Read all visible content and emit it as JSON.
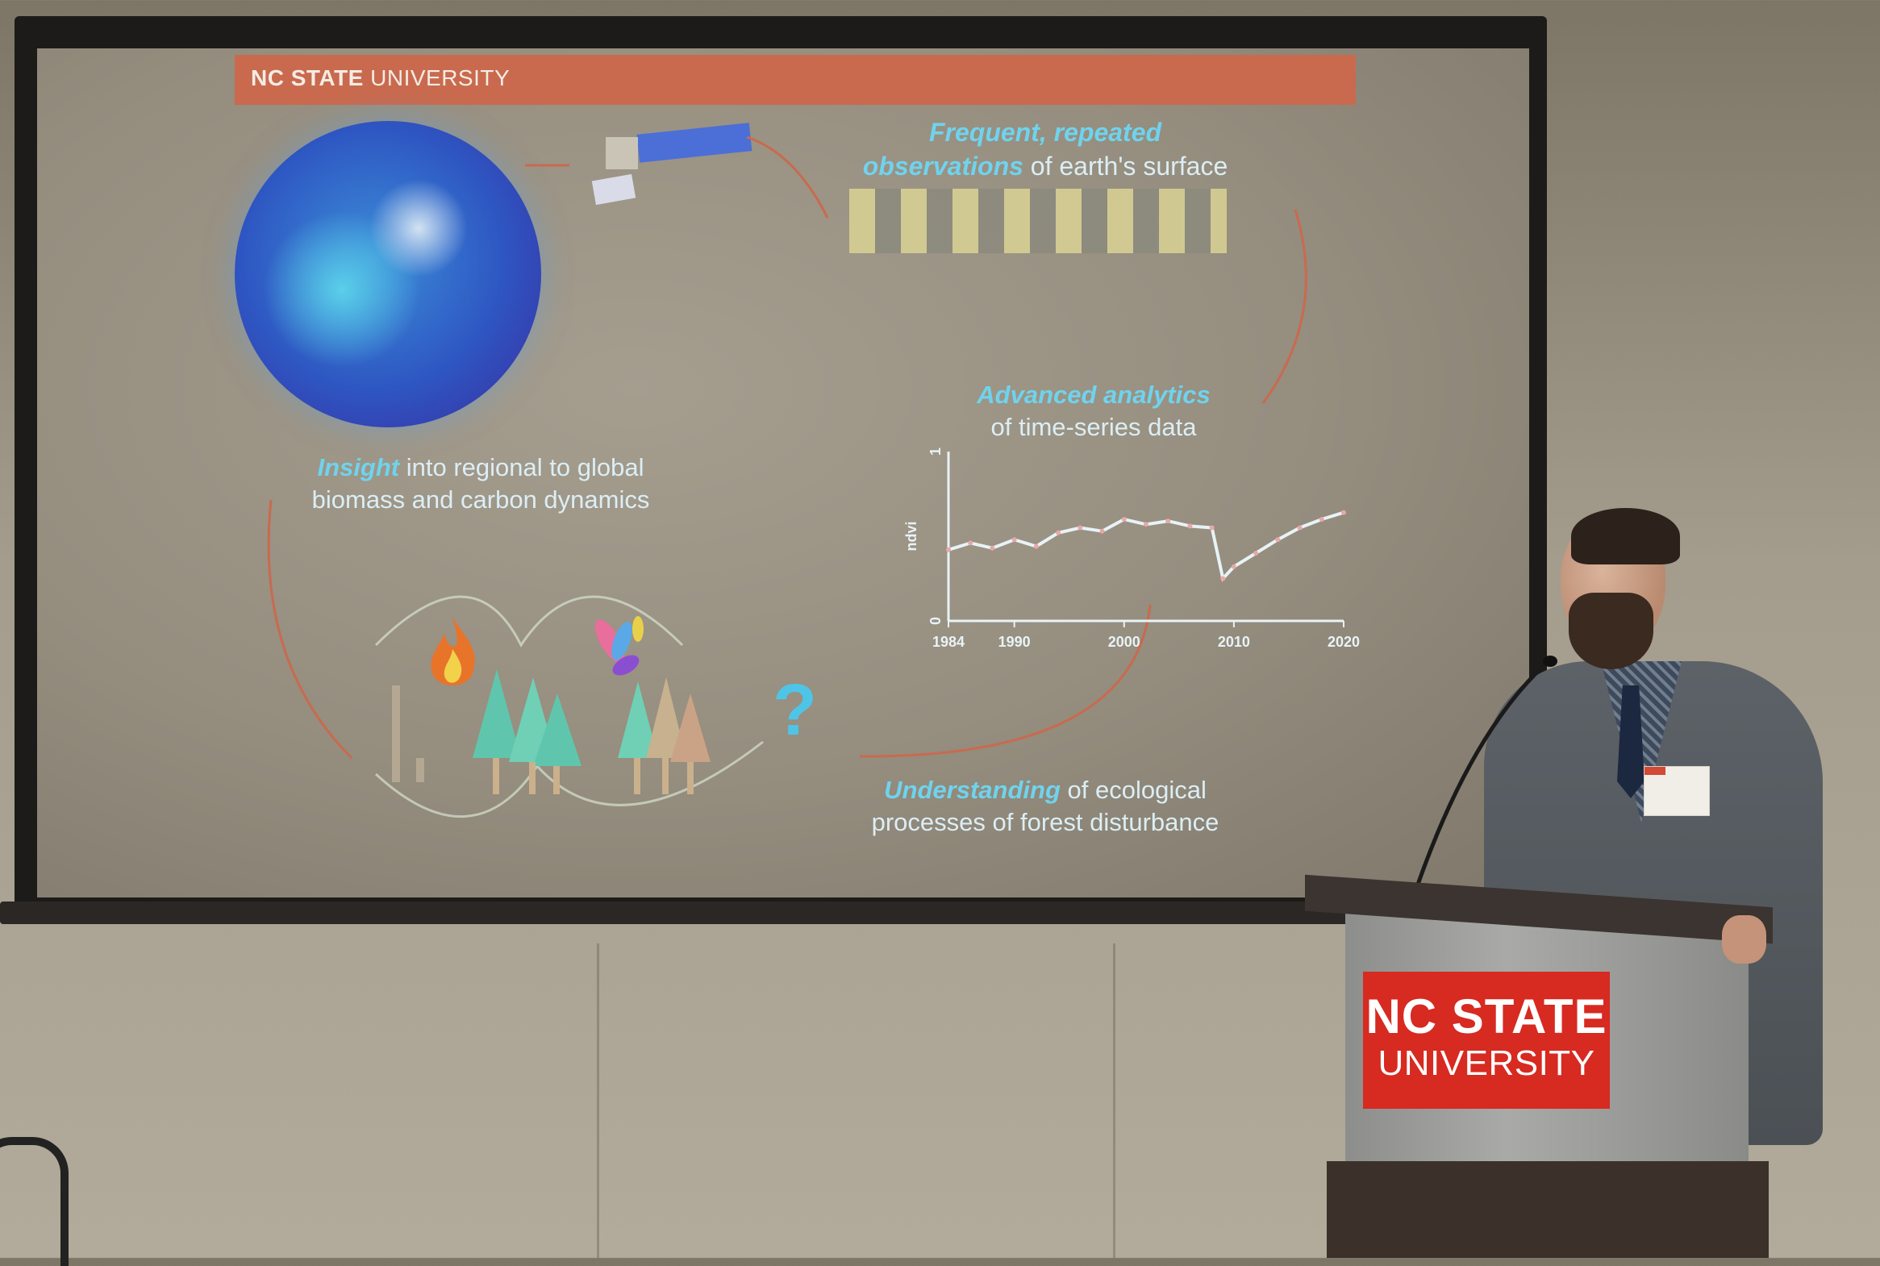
{
  "slide": {
    "header": {
      "bold": "NC STATE",
      "light": " UNIVERSITY"
    },
    "observations": {
      "emphasis": "Frequent, repeated",
      "emphasis2": "observations",
      "rest": " of earth's surface"
    },
    "analytics": {
      "emphasis": "Advanced analytics",
      "rest": "of time-series data"
    },
    "insight": {
      "emphasis": "Insight",
      "rest": " into regional to global",
      "line2": "biomass and carbon dynamics"
    },
    "understanding": {
      "emphasis": "Understanding",
      "rest": " of ecological",
      "line2": "processes of forest disturbance"
    },
    "question_mark": "?"
  },
  "chart_data": {
    "type": "scatter",
    "ylabel": "ndvi",
    "xticks": [
      "1984",
      "1990",
      "2000",
      "2010",
      "2020"
    ],
    "yticks": [
      "0",
      "1"
    ],
    "xlim": [
      1984,
      2020
    ],
    "ylim": [
      0,
      1
    ],
    "trend": {
      "x": [
        1984,
        1986,
        1988,
        1990,
        1992,
        1994,
        1996,
        1998,
        2000,
        2002,
        2004,
        2006,
        2008,
        2009,
        2010,
        2012,
        2014,
        2016,
        2018,
        2020
      ],
      "y": [
        0.42,
        0.46,
        0.43,
        0.48,
        0.44,
        0.52,
        0.55,
        0.53,
        0.6,
        0.57,
        0.59,
        0.56,
        0.55,
        0.25,
        0.32,
        0.4,
        0.48,
        0.55,
        0.6,
        0.64
      ]
    }
  },
  "podium_sign": {
    "line1": "NC STATE",
    "line2": "UNIVERSITY"
  },
  "colors": {
    "accent_red": "#d72a21",
    "slide_header": "#c96a4e",
    "slide_cyan": "#6fd3ee"
  }
}
